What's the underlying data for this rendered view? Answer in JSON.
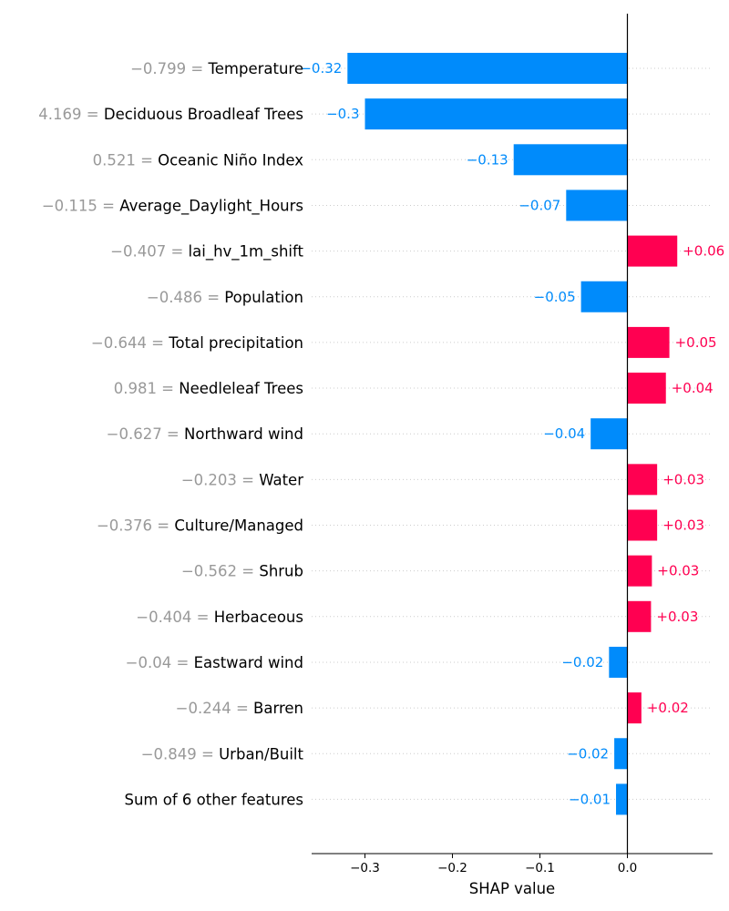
{
  "chart_data": {
    "type": "bar",
    "orientation": "horizontal",
    "xlabel": "SHAP value",
    "xlim": [
      -0.36,
      0.1
    ],
    "xticks": [
      {
        "value": -0.3,
        "label": "−0.3"
      },
      {
        "value": -0.2,
        "label": "−0.2"
      },
      {
        "value": -0.1,
        "label": "−0.1"
      },
      {
        "value": 0.0,
        "label": "0.0"
      }
    ],
    "colors": {
      "positive": "#ff0051",
      "negative": "#008bfb",
      "feature_value": "#999999",
      "feature_name": "#000000"
    },
    "features": [
      {
        "feature_value": "−0.799 = ",
        "name": "Temperature",
        "value": -0.32,
        "label": "−0.32"
      },
      {
        "feature_value": "4.169 = ",
        "name": "Deciduous Broadleaf Trees",
        "value": -0.3,
        "label": "−0.3"
      },
      {
        "feature_value": "0.521 = ",
        "name": "Oceanic Niño Index",
        "value": -0.13,
        "label": "−0.13"
      },
      {
        "feature_value": "−0.115 = ",
        "name": "Average_Daylight_Hours",
        "value": -0.07,
        "label": "−0.07"
      },
      {
        "feature_value": "−0.407 = ",
        "name": "lai_hv_1m_shift",
        "value": 0.057,
        "label": "+0.06"
      },
      {
        "feature_value": "−0.486 = ",
        "name": "Population",
        "value": -0.053,
        "label": "−0.05"
      },
      {
        "feature_value": "−0.644 = ",
        "name": "Total precipitation",
        "value": 0.048,
        "label": "+0.05"
      },
      {
        "feature_value": "0.981 = ",
        "name": "Needleleaf Trees",
        "value": 0.044,
        "label": "+0.04"
      },
      {
        "feature_value": "−0.627 = ",
        "name": "Northward wind",
        "value": -0.042,
        "label": "−0.04"
      },
      {
        "feature_value": "−0.203 = ",
        "name": "Water",
        "value": 0.034,
        "label": "+0.03"
      },
      {
        "feature_value": "−0.376 = ",
        "name": "Culture/Managed",
        "value": 0.034,
        "label": "+0.03"
      },
      {
        "feature_value": "−0.562 = ",
        "name": "Shrub",
        "value": 0.028,
        "label": "+0.03"
      },
      {
        "feature_value": "−0.404 = ",
        "name": "Herbaceous",
        "value": 0.027,
        "label": "+0.03"
      },
      {
        "feature_value": "−0.04 = ",
        "name": "Eastward wind",
        "value": -0.021,
        "label": "−0.02"
      },
      {
        "feature_value": "−0.244 = ",
        "name": "Barren",
        "value": 0.016,
        "label": "+0.02"
      },
      {
        "feature_value": "−0.849 = ",
        "name": "Urban/Built",
        "value": -0.015,
        "label": "−0.02"
      },
      {
        "feature_value": "",
        "name": "Sum of 6 other features",
        "value": -0.013,
        "label": "−0.01"
      }
    ]
  }
}
